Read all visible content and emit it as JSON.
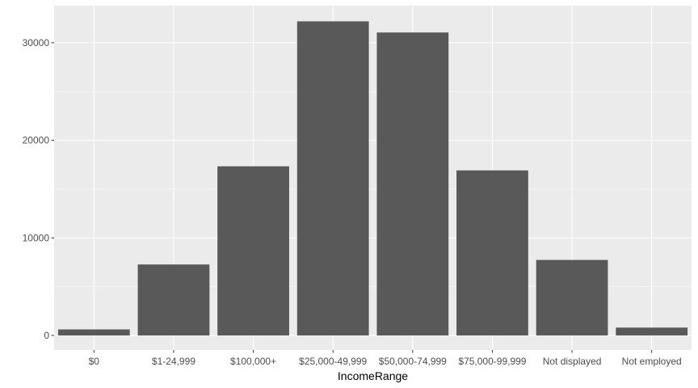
{
  "chart_data": {
    "type": "bar",
    "title": "",
    "xlabel": "IncomeRange",
    "ylabel": "",
    "categories": [
      "$0",
      "$1-24,999",
      "$100,000+",
      "$25,000-49,999",
      "$50,000-74,999",
      "$75,000-99,999",
      "Not displayed",
      "Not employed"
    ],
    "values": [
      621,
      7274,
      17337,
      32192,
      31050,
      16916,
      7741,
      806
    ],
    "ylim": [
      0,
      33800
    ],
    "yticks": [
      0,
      10000,
      20000,
      30000
    ],
    "ytick_labels": [
      "0",
      "10000",
      "20000",
      "30000"
    ],
    "grid": true,
    "legend": "none",
    "colors": {
      "panel": "#EBEBEB",
      "grid_major": "#FFFFFF",
      "bar": "#595959"
    }
  }
}
